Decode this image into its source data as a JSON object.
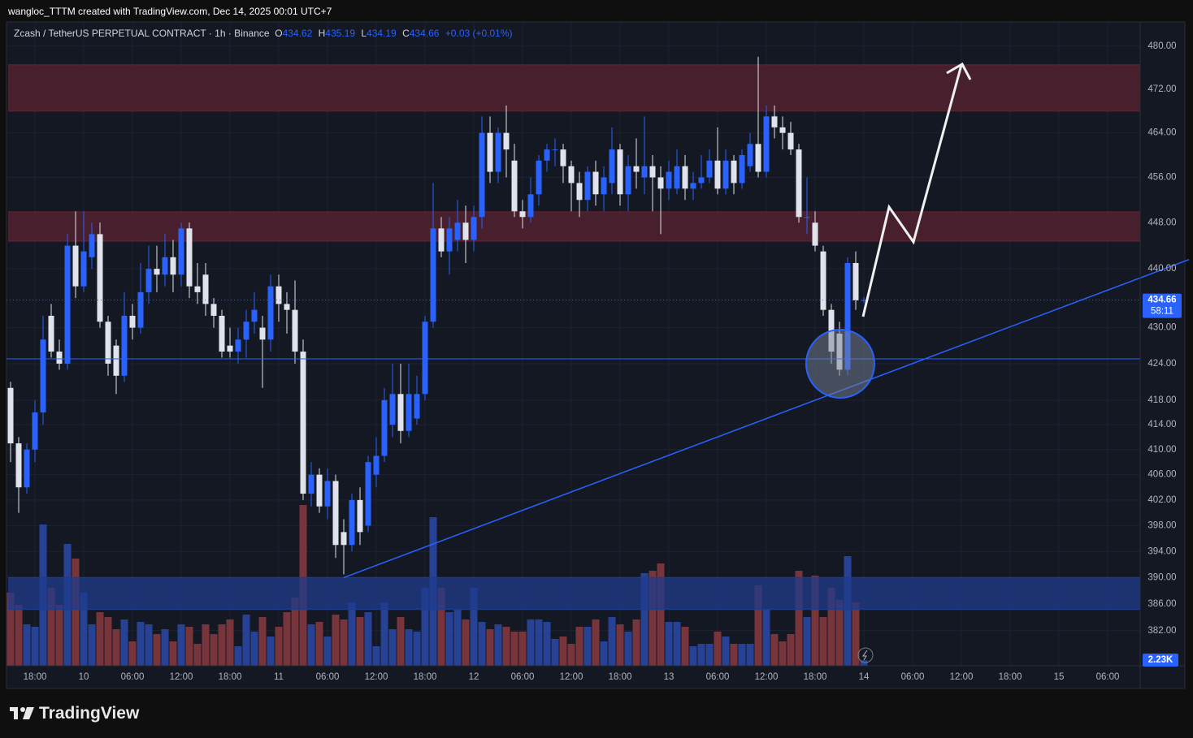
{
  "chart_data": {
    "type": "candlestick",
    "watermark": "wangloc_TTTM created with TradingView.com, Dec 14, 2025 00:01 UTC+7",
    "symbol": "Zcash / TetherUS PERPETUAL CONTRACT · 1h · Binance",
    "ohlc_labels": [
      "O",
      "H",
      "L",
      "C"
    ],
    "change": "+0.03 (+0.01%)",
    "countdown": "58:11",
    "volume_tag": "2.23K",
    "logo": "TradingView",
    "log_scale": true,
    "grid": true,
    "up_color": "#2962ff",
    "down_color": "#e0e3eb",
    "volume_up_color": "#2a4aa8",
    "volume_down_color": "#8a3a40",
    "open": [
      420,
      411,
      404,
      410,
      416,
      432,
      426,
      424,
      444,
      437,
      442,
      446,
      431,
      427,
      422,
      432,
      430,
      436,
      440,
      439,
      442,
      439,
      447,
      437,
      439,
      434,
      432,
      427,
      426,
      428,
      431,
      430,
      428,
      437,
      434,
      433,
      426,
      403,
      406,
      401,
      405,
      397,
      395,
      402,
      398,
      406,
      409,
      414,
      419,
      413,
      415,
      419,
      431,
      447,
      443,
      445,
      448,
      445,
      449,
      464,
      457,
      464,
      459,
      450,
      449,
      453,
      459,
      461,
      461,
      458,
      455,
      452,
      457,
      453,
      455,
      461,
      453,
      458,
      456,
      458,
      456,
      454,
      454,
      458,
      454,
      455,
      456,
      459,
      454,
      459,
      455,
      458,
      462,
      457,
      467,
      465,
      464,
      461,
      449,
      448,
      443,
      433,
      429,
      423,
      441,
      434.62
    ],
    "high": [
      421,
      412,
      411,
      418,
      432,
      434,
      428,
      446,
      450,
      450,
      448,
      448,
      432,
      428,
      436,
      434,
      441,
      444,
      444,
      446,
      445,
      448,
      448,
      441,
      441,
      435,
      433,
      430,
      430,
      433,
      436,
      432,
      439,
      439,
      436,
      438,
      428,
      408,
      407,
      407,
      406,
      399,
      403,
      404,
      409,
      412,
      420,
      424,
      424,
      424,
      422,
      432,
      455,
      449,
      449,
      452,
      451,
      451,
      467,
      467,
      465,
      469,
      462,
      452,
      456,
      460,
      462,
      463,
      462,
      459,
      457,
      458,
      459,
      458,
      465,
      462,
      460,
      463,
      467,
      460,
      458,
      459,
      461,
      460,
      457,
      460,
      461,
      465,
      461,
      460,
      461,
      464,
      478,
      469,
      469,
      467,
      466,
      462,
      456,
      450,
      444,
      434,
      431,
      442,
      443,
      435.19
    ],
    "low": [
      408,
      400,
      403,
      408,
      414,
      425,
      423,
      423,
      435,
      436,
      440,
      430,
      422,
      419,
      421,
      428,
      429,
      434,
      436,
      437,
      436,
      437,
      435,
      434,
      432,
      430,
      425,
      425,
      424,
      425,
      429,
      420,
      426,
      431,
      429,
      424,
      402,
      401,
      400,
      399,
      393,
      390.5,
      394,
      395,
      397,
      404,
      408,
      412,
      411,
      412,
      414,
      418,
      430,
      442,
      439,
      443,
      441,
      443,
      447,
      455,
      455,
      456,
      449,
      447,
      448,
      451,
      457,
      458,
      455,
      450,
      449,
      450,
      451,
      450,
      453,
      451,
      450,
      454,
      453,
      450,
      446,
      452,
      453,
      452,
      452,
      454,
      455,
      453,
      453,
      453,
      454,
      457,
      456,
      456,
      463,
      461,
      460,
      448,
      446,
      443,
      432,
      424,
      422,
      422,
      433,
      434.19
    ],
    "close": [
      411,
      404,
      410,
      416,
      428,
      426,
      424,
      444,
      437,
      443,
      446,
      431,
      424,
      422,
      432,
      430,
      436,
      440,
      439,
      442,
      439,
      447,
      437,
      436,
      434,
      432,
      426,
      426,
      428,
      431,
      433,
      428,
      437,
      434,
      433,
      426,
      403,
      406,
      401,
      405,
      395,
      395,
      402,
      397,
      408,
      409,
      418,
      419,
      413,
      419,
      419,
      431,
      447,
      443,
      447,
      448,
      445,
      449,
      464,
      457,
      464,
      461,
      450,
      449,
      453,
      459,
      461,
      461,
      458,
      455,
      452,
      457,
      453,
      456,
      461,
      453,
      458,
      457,
      458,
      456,
      454,
      457,
      458,
      454,
      455,
      456,
      459,
      454,
      459,
      455,
      460,
      462,
      457,
      467,
      465,
      464,
      461,
      449,
      449,
      444,
      433,
      426,
      423,
      441,
      434.62,
      434.66
    ],
    "volume": [
      30000,
      25000,
      17000,
      16000,
      58000,
      32000,
      25000,
      50000,
      44000,
      30000,
      17000,
      22000,
      20000,
      15000,
      19000,
      10000,
      18000,
      17000,
      13000,
      15000,
      10000,
      17000,
      16000,
      9000,
      17000,
      13000,
      17000,
      19000,
      8000,
      21000,
      14000,
      20000,
      12000,
      16000,
      22000,
      28000,
      66000,
      17000,
      18000,
      12000,
      21000,
      19000,
      26000,
      20000,
      22000,
      8000,
      26000,
      15000,
      20000,
      15000,
      14000,
      32000,
      61000,
      32000,
      22000,
      23000,
      19000,
      32000,
      18000,
      15000,
      17000,
      16000,
      14000,
      14000,
      19000,
      19000,
      18000,
      11000,
      12000,
      9000,
      16000,
      16000,
      19000,
      10000,
      20000,
      17000,
      14000,
      19000,
      38000,
      39000,
      42000,
      18000,
      18000,
      16000,
      8000,
      9000,
      9000,
      14000,
      12000,
      9000,
      9000,
      9000,
      33000,
      23000,
      13000,
      10000,
      13000,
      39000,
      20000,
      37000,
      20000,
      32000,
      27000,
      45000,
      26000,
      2230
    ],
    "vlim": [
      0,
      70000
    ],
    "xlim": [
      -0.5,
      139
    ],
    "ylim": [
      376.8,
      484.4
    ],
    "yticks": [
      {
        "value": 480,
        "label": "480.00"
      },
      {
        "value": 472,
        "label": "472.00"
      },
      {
        "value": 464,
        "label": "464.00"
      },
      {
        "value": 456,
        "label": "456.00"
      },
      {
        "value": 448,
        "label": "448.00"
      },
      {
        "value": 440,
        "label": "440.00"
      },
      {
        "value": 430,
        "label": "430.00"
      },
      {
        "value": 424,
        "label": "424.00"
      },
      {
        "value": 418,
        "label": "418.00"
      },
      {
        "value": 414,
        "label": "414.00"
      },
      {
        "value": 410,
        "label": "410.00"
      },
      {
        "value": 406,
        "label": "406.00"
      },
      {
        "value": 402,
        "label": "402.00"
      },
      {
        "value": 398,
        "label": "398.00"
      },
      {
        "value": 394,
        "label": "394.00"
      },
      {
        "value": 390,
        "label": "390.00"
      },
      {
        "value": 386,
        "label": "386.00"
      },
      {
        "value": 382,
        "label": "382.00"
      }
    ],
    "xticks": [
      {
        "value": 3,
        "label": "18:00"
      },
      {
        "value": 9,
        "label": "10"
      },
      {
        "value": 15,
        "label": "06:00"
      },
      {
        "value": 21,
        "label": "12:00"
      },
      {
        "value": 27,
        "label": "18:00"
      },
      {
        "value": 33,
        "label": "11"
      },
      {
        "value": 39,
        "label": "06:00"
      },
      {
        "value": 45,
        "label": "12:00"
      },
      {
        "value": 51,
        "label": "18:00"
      },
      {
        "value": 57,
        "label": "12"
      },
      {
        "value": 63,
        "label": "06:00"
      },
      {
        "value": 69,
        "label": "12:00"
      },
      {
        "value": 75,
        "label": "18:00"
      },
      {
        "value": 81,
        "label": "13"
      },
      {
        "value": 87,
        "label": "06:00"
      },
      {
        "value": 93,
        "label": "12:00"
      },
      {
        "value": 99,
        "label": "18:00"
      },
      {
        "value": 105,
        "label": "14"
      },
      {
        "value": 111,
        "label": "06:00"
      },
      {
        "value": 117,
        "label": "12:00"
      },
      {
        "value": 123,
        "label": "18:00"
      },
      {
        "value": 129,
        "label": "15"
      },
      {
        "value": 135,
        "label": "06:00"
      }
    ],
    "zones": [
      {
        "top": 476.5,
        "bottom": 468,
        "color": "#5a2130"
      },
      {
        "top": 449.9,
        "bottom": 444.8,
        "color": "#5a2130"
      },
      {
        "top": 390,
        "bottom": 385.2,
        "color": "#1f3b8c"
      }
    ],
    "hline": 424.8,
    "trendline": {
      "x": [
        41,
        145
      ],
      "y": [
        390,
        441.6
      ]
    }
  }
}
